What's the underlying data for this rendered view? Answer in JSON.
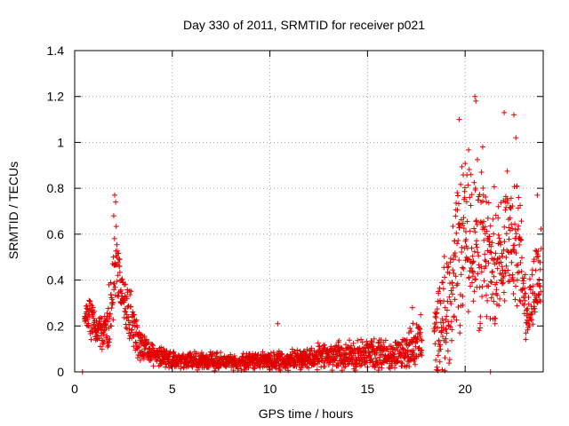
{
  "chart_data": {
    "type": "scatter",
    "title": "Day 330 of 2011, SRMTID for receiver p021",
    "xlabel": "GPS time / hours",
    "ylabel": "SRMTID / TECUs",
    "xlim": [
      0,
      24
    ],
    "ylim": [
      0,
      1.4
    ],
    "xticks": [
      "0",
      "5",
      "10",
      "15",
      "20"
    ],
    "yticks": [
      "0",
      "0.2",
      "0.4",
      "0.6",
      "0.8",
      "1",
      "1.2",
      "1.4"
    ],
    "grid": true,
    "marker": "+",
    "color": "#e00000",
    "profile": [
      {
        "t": 0.5,
        "base": 0.26,
        "spread": 0.05
      },
      {
        "t": 0.8,
        "base": 0.24,
        "spread": 0.12
      },
      {
        "t": 1.2,
        "base": 0.17,
        "spread": 0.08
      },
      {
        "t": 1.6,
        "base": 0.16,
        "spread": 0.12
      },
      {
        "t": 1.9,
        "base": 0.3,
        "spread": 0.2
      },
      {
        "t": 2.1,
        "base": 0.55,
        "spread": 0.22
      },
      {
        "t": 2.4,
        "base": 0.33,
        "spread": 0.12
      },
      {
        "t": 2.8,
        "base": 0.25,
        "spread": 0.15
      },
      {
        "t": 3.3,
        "base": 0.12,
        "spread": 0.08
      },
      {
        "t": 4.0,
        "base": 0.07,
        "spread": 0.06
      },
      {
        "t": 5.0,
        "base": 0.05,
        "spread": 0.05
      },
      {
        "t": 8.0,
        "base": 0.045,
        "spread": 0.04
      },
      {
        "t": 11.0,
        "base": 0.05,
        "spread": 0.05
      },
      {
        "t": 13.0,
        "base": 0.07,
        "spread": 0.07
      },
      {
        "t": 15.0,
        "base": 0.08,
        "spread": 0.08
      },
      {
        "t": 16.5,
        "base": 0.07,
        "spread": 0.08
      },
      {
        "t": 17.5,
        "base": 0.12,
        "spread": 0.12
      },
      {
        "t": 18.5,
        "base": 0.15,
        "spread": 0.2
      },
      {
        "t": 19.3,
        "base": 0.35,
        "spread": 0.35
      },
      {
        "t": 19.8,
        "base": 0.55,
        "spread": 0.4
      },
      {
        "t": 20.4,
        "base": 0.6,
        "spread": 0.45
      },
      {
        "t": 21.0,
        "base": 0.5,
        "spread": 0.4
      },
      {
        "t": 21.6,
        "base": 0.45,
        "spread": 0.35
      },
      {
        "t": 22.2,
        "base": 0.65,
        "spread": 0.4
      },
      {
        "t": 22.8,
        "base": 0.5,
        "spread": 0.3
      },
      {
        "t": 23.2,
        "base": 0.25,
        "spread": 0.15
      },
      {
        "t": 23.8,
        "base": 0.45,
        "spread": 0.3
      }
    ],
    "highlights": [
      {
        "x": 20.5,
        "y": 1.2
      },
      {
        "x": 20.55,
        "y": 1.18
      },
      {
        "x": 22.0,
        "y": 1.13
      },
      {
        "x": 22.5,
        "y": 1.12
      },
      {
        "x": 19.7,
        "y": 1.1
      },
      {
        "x": 22.6,
        "y": 1.02
      },
      {
        "x": 20.9,
        "y": 0.98
      },
      {
        "x": 2.05,
        "y": 0.77
      },
      {
        "x": 2.1,
        "y": 0.74
      },
      {
        "x": 2.0,
        "y": 0.68
      },
      {
        "x": 23.7,
        "y": 0.77
      },
      {
        "x": 0.4,
        "y": 0.0
      },
      {
        "x": 21.3,
        "y": 0.0
      },
      {
        "x": 10.4,
        "y": 0.21
      },
      {
        "x": 17.3,
        "y": 0.28
      }
    ]
  }
}
